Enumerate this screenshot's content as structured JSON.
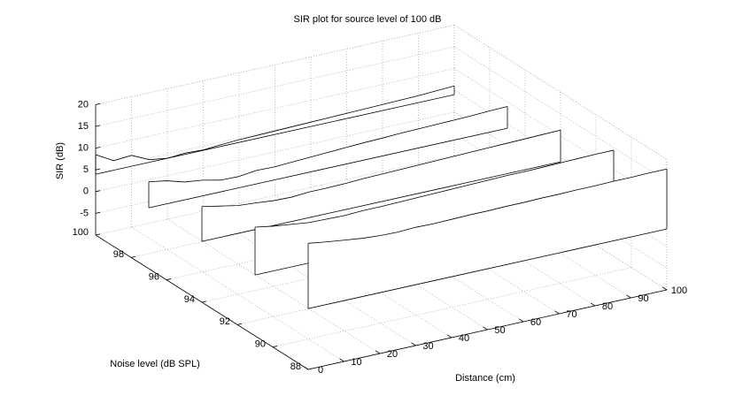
{
  "chart_data": {
    "type": "waterfall",
    "title": "SIR plot for source level of 100 dB",
    "xlabel": "Distance (cm)",
    "ylabel": "Noise level (dB SPL)",
    "zlabel": "SIR (dB)",
    "x": [
      0,
      5,
      10,
      15,
      20,
      25,
      30,
      35,
      40,
      45,
      50,
      55,
      60,
      65,
      70,
      75,
      80,
      85,
      90,
      95,
      100
    ],
    "series": [
      {
        "noise_level": 100,
        "values": [
          8.5,
          6.2,
          6.5,
          4.6,
          4.0,
          4.3,
          4.1,
          4.4,
          4.6,
          4.7,
          4.8,
          4.9,
          5.0,
          5.1,
          5.2,
          5.3,
          5.4,
          5.5,
          5.6,
          5.8,
          6.0
        ]
      },
      {
        "noise_level": 97,
        "values": [
          10.0,
          9.3,
          8.1,
          7.6,
          6.7,
          6.6,
          7.1,
          7.0,
          7.2,
          7.4,
          7.6,
          7.8,
          8.0,
          8.1,
          8.3,
          8.4,
          8.5,
          8.6,
          8.7,
          8.9,
          9.0
        ]
      },
      {
        "noise_level": 94,
        "values": [
          12.0,
          11.2,
          10.4,
          10.1,
          9.7,
          9.6,
          9.9,
          9.9,
          10.0,
          10.2,
          10.3,
          10.4,
          10.5,
          10.6,
          10.7,
          10.8,
          10.9,
          11.0,
          11.1,
          11.2,
          11.3
        ]
      },
      {
        "noise_level": 91,
        "values": [
          15.0,
          14.3,
          13.8,
          13.3,
          13.2,
          13.1,
          13.3,
          13.3,
          13.4,
          13.5,
          13.6,
          13.7,
          13.8,
          13.9,
          14.0,
          14.0,
          14.1,
          14.2,
          14.3,
          14.4,
          14.4
        ]
      },
      {
        "noise_level": 88,
        "values": [
          19.0,
          18.4,
          17.9,
          17.4,
          17.1,
          17.0,
          17.2,
          17.1,
          17.2,
          17.3,
          17.3,
          17.4,
          17.4,
          17.5,
          17.5,
          17.6,
          17.6,
          17.7,
          17.7,
          17.8,
          17.8
        ]
      }
    ],
    "color": "#000000",
    "xlim": [
      0,
      100
    ],
    "xticks": [
      0,
      10,
      20,
      30,
      40,
      50,
      60,
      70,
      80,
      90,
      100
    ],
    "ylim": [
      88,
      100
    ],
    "yticks": [
      88,
      90,
      92,
      94,
      96,
      98,
      100
    ],
    "zlim": [
      -10,
      20
    ],
    "zticks": [
      -5,
      0,
      5,
      10,
      15,
      20
    ],
    "grid": true
  }
}
